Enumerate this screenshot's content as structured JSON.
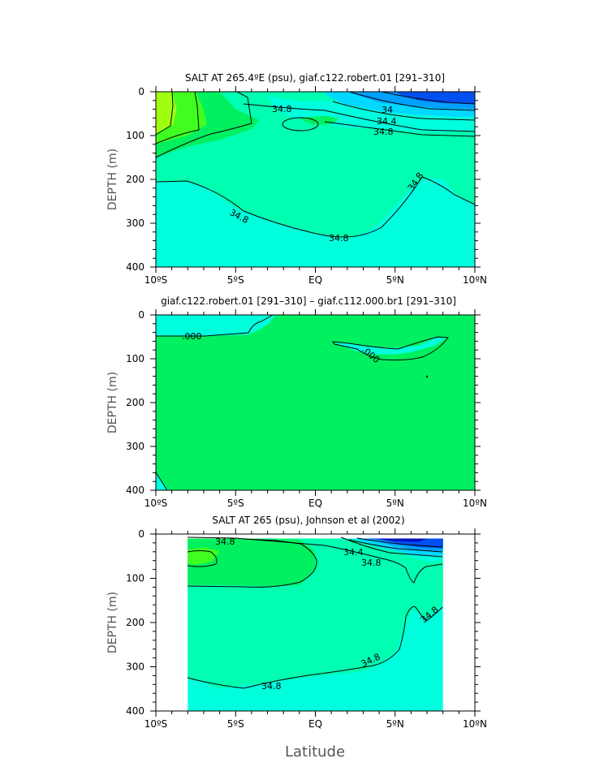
{
  "figure": {
    "xlabel": "Latitude"
  },
  "colors": {
    "c_lt34_0": "#0050f0",
    "c_34_0": "#00a0ff",
    "c_34_4": "#00d8ff",
    "c_34_8": "#00ffdd",
    "c_35_0": "#00ffb0",
    "c_35_2": "#00f060",
    "c_35_4": "#40ff20",
    "c_35_6": "#a0ff10",
    "c_diff_pos": "#00f060",
    "c_diff_neg": "#00ffdd",
    "c_deep_blue": "#0010c0"
  },
  "chart_data": [
    {
      "type": "contour",
      "title": "SALT AT 265.4ºE (psu), giaf.c122.robert.01 [291–310]",
      "ylabel": "DEPTH (m)",
      "x_ticks": [
        "10ºS",
        "5ºS",
        "EQ",
        "5ºN",
        "10ºN"
      ],
      "y_ticks": [
        "0",
        "100",
        "200",
        "300",
        "400"
      ],
      "xlim": [
        -10,
        10
      ],
      "ylim": [
        400,
        0
      ],
      "contour_labels": [
        "34.8",
        "34",
        "34.4",
        "34.8",
        "34.8",
        "34.8",
        "34.8"
      ],
      "regions": [
        {
          "color": "c_34_8",
          "points": [
            [
              -10,
              0
            ],
            [
              10,
              0
            ],
            [
              10,
              400
            ],
            [
              -10,
              400
            ]
          ]
        },
        {
          "color": "c_35_0",
          "points": [
            [
              -10,
              0
            ],
            [
              10,
              0
            ],
            [
              10,
              255
            ],
            [
              9,
              240
            ],
            [
              8,
              200
            ],
            [
              7,
              195
            ],
            [
              6,
              220
            ],
            [
              5,
              260
            ],
            [
              4,
              300
            ],
            [
              3,
              325
            ],
            [
              2,
              335
            ],
            [
              1,
              332
            ],
            [
              0,
              322
            ],
            [
              -1,
              312
            ],
            [
              -3,
              292
            ],
            [
              -5,
              265
            ],
            [
              -6,
              240
            ],
            [
              -7,
              215
            ],
            [
              -8,
              205
            ],
            [
              -10,
              205
            ]
          ]
        },
        {
          "color": "c_34_8",
          "points": [
            [
              -3.0,
              10
            ],
            [
              -1,
              22
            ],
            [
              1,
              20
            ],
            [
              3,
              20
            ],
            [
              5,
              24
            ],
            [
              7,
              28
            ],
            [
              10,
              32
            ],
            [
              10,
              90
            ],
            [
              8,
              92
            ],
            [
              6,
              90
            ],
            [
              4,
              85
            ],
            [
              2,
              82
            ],
            [
              0,
              72
            ],
            [
              -1.5,
              58
            ],
            [
              -2.5,
              40
            ]
          ]
        },
        {
          "color": "c_34_4",
          "points": [
            [
              0.5,
              0
            ],
            [
              10,
              0
            ],
            [
              10,
              58
            ],
            [
              8,
              56
            ],
            [
              6,
              52
            ],
            [
              4,
              44
            ],
            [
              2,
              30
            ],
            [
              1,
              15
            ]
          ]
        },
        {
          "color": "c_34_0",
          "points": [
            [
              2,
              0
            ],
            [
              10,
              0
            ],
            [
              10,
              40
            ],
            [
              8,
              38
            ],
            [
              6,
              33
            ],
            [
              4,
              24
            ],
            [
              3,
              12
            ]
          ]
        },
        {
          "color": "c_lt34_0",
          "points": [
            [
              5,
              0
            ],
            [
              10,
              0
            ],
            [
              10,
              28
            ],
            [
              8,
              26
            ],
            [
              6.5,
              20
            ],
            [
              5.5,
              10
            ]
          ]
        },
        {
          "color": "c_35_2",
          "points": [
            [
              -10,
              0
            ],
            [
              -6,
              0
            ],
            [
              -5,
              40
            ],
            [
              -3.5,
              65
            ],
            [
              -4,
              85
            ],
            [
              -6,
              110
            ],
            [
              -8,
              125
            ],
            [
              -10,
              150
            ]
          ]
        },
        {
          "color": "c_35_2",
          "points": [
            [
              1.0,
              75
            ],
            [
              1.5,
              62
            ],
            [
              0.7,
              55
            ],
            [
              -0.5,
              58
            ],
            [
              -1.0,
              62
            ],
            [
              -0.2,
              75
            ]
          ]
        },
        {
          "color": "c_35_4",
          "points": [
            [
              -10,
              0
            ],
            [
              -7.5,
              0
            ],
            [
              -7.0,
              40
            ],
            [
              -6.8,
              75
            ],
            [
              -8,
              100
            ],
            [
              -10,
              120
            ]
          ]
        },
        {
          "color": "c_35_6",
          "points": [
            [
              -10,
              0
            ],
            [
              -9.0,
              0
            ],
            [
              -8.7,
              40
            ],
            [
              -8.9,
              75
            ],
            [
              -10,
              95
            ]
          ]
        }
      ]
    },
    {
      "type": "contour",
      "title": "giaf.c122.robert.01 [291–310] – giaf.c112.000.br1 [291–310]",
      "ylabel": "DEPTH (m)",
      "x_ticks": [
        "10ºS",
        "5ºS",
        "EQ",
        "5ºN",
        "10ºN"
      ],
      "y_ticks": [
        "0",
        "100",
        "200",
        "300",
        "400"
      ],
      "xlim": [
        -10,
        10
      ],
      "ylim": [
        400,
        0
      ],
      "contour_labels": [
        ".000",
        ".000"
      ],
      "regions": [
        {
          "color": "c_diff_pos",
          "points": [
            [
              -10,
              0
            ],
            [
              10,
              0
            ],
            [
              10,
              400
            ],
            [
              -10,
              400
            ]
          ]
        },
        {
          "color": "c_diff_neg",
          "points": [
            [
              -10,
              0
            ],
            [
              -2.5,
              0
            ],
            [
              -2.9,
              20
            ],
            [
              -3.6,
              35
            ],
            [
              -4.2,
              45
            ],
            [
              -6.5,
              48
            ],
            [
              -10,
              48
            ]
          ]
        },
        {
          "color": "c_diff_neg",
          "points": [
            [
              1.2,
              62
            ],
            [
              2.5,
              66
            ],
            [
              3.5,
              72
            ],
            [
              5,
              75
            ],
            [
              6.5,
              70
            ],
            [
              7.5,
              52
            ],
            [
              8.2,
              53
            ],
            [
              7.5,
              70
            ],
            [
              6,
              85
            ],
            [
              5,
              90
            ],
            [
              3.5,
              90
            ],
            [
              2.5,
              82
            ],
            [
              1.5,
              68
            ]
          ]
        },
        {
          "color": "c_diff_neg",
          "points": [
            [
              -10,
              360
            ],
            [
              -9.2,
              400
            ],
            [
              -10,
              400
            ]
          ]
        }
      ]
    },
    {
      "type": "contour",
      "title": "SALT AT 265 (psu), Johnson et al (2002)",
      "ylabel": "DEPTH (m)",
      "x_ticks": [
        "10ºS",
        "5ºS",
        "EQ",
        "5ºN",
        "10ºN"
      ],
      "y_ticks": [
        "0",
        "100",
        "200",
        "300",
        "400"
      ],
      "xlim": [
        -10,
        10
      ],
      "ylim": [
        400,
        0
      ],
      "data_xrange": [
        -8,
        8
      ],
      "data_yrange": [
        10,
        400
      ],
      "contour_labels": [
        "34.8",
        "34.4",
        "34.8",
        "34.8",
        "34.8",
        "34.8"
      ],
      "regions": [
        {
          "color": "c_34_8",
          "points": [
            [
              -8,
              10
            ],
            [
              8,
              10
            ],
            [
              8,
              400
            ],
            [
              -8,
              400
            ]
          ]
        },
        {
          "color": "c_35_0",
          "points": [
            [
              -8,
              10
            ],
            [
              1,
              10
            ],
            [
              2,
              12
            ],
            [
              3,
              18
            ],
            [
              4,
              28
            ],
            [
              5,
              35
            ],
            [
              6,
              52
            ],
            [
              7,
              62
            ],
            [
              8,
              60
            ],
            [
              8,
              160
            ],
            [
              7,
              190
            ],
            [
              6,
              170
            ],
            [
              5,
              270
            ],
            [
              4,
              295
            ],
            [
              3,
              310
            ],
            [
              2,
              315
            ],
            [
              1,
              318
            ],
            [
              0,
              322
            ],
            [
              -2,
              330
            ],
            [
              -4,
              340
            ],
            [
              -6,
              350
            ],
            [
              -7,
              335
            ],
            [
              -8,
              325
            ]
          ]
        },
        {
          "color": "c_35_2",
          "points": [
            [
              -8,
              10
            ],
            [
              -4,
              10
            ],
            [
              -1,
              12
            ],
            [
              0,
              40
            ],
            [
              0,
              80
            ],
            [
              -1,
              115
            ],
            [
              -3,
              118
            ],
            [
              -6,
              115
            ],
            [
              -8,
              115
            ]
          ]
        },
        {
          "color": "c_35_4",
          "points": [
            [
              -8,
              35
            ],
            [
              -7,
              30
            ],
            [
              -6,
              38
            ],
            [
              -6.5,
              62
            ],
            [
              -7.5,
              70
            ],
            [
              -8,
              65
            ]
          ]
        },
        {
          "color": "c_34_4",
          "points": [
            [
              2.5,
              10
            ],
            [
              8,
              10
            ],
            [
              8,
              48
            ],
            [
              6.5,
              48
            ],
            [
              5,
              38
            ],
            [
              4,
              30
            ],
            [
              3,
              18
            ]
          ]
        },
        {
          "color": "c_34_0",
          "points": [
            [
              3,
              10
            ],
            [
              8,
              10
            ],
            [
              8,
              38
            ],
            [
              6.5,
              38
            ],
            [
              5,
              28
            ],
            [
              4,
              18
            ]
          ]
        },
        {
          "color": "c_lt34_0",
          "points": [
            [
              3.3,
              10
            ],
            [
              8,
              10
            ],
            [
              8,
              32
            ],
            [
              6.5,
              30
            ],
            [
              5,
              20
            ],
            [
              4,
              12
            ]
          ]
        },
        {
          "color": "c_deep_blue",
          "points": [
            [
              3.3,
              10
            ],
            [
              7,
              10
            ],
            [
              6.5,
              18
            ],
            [
              5,
              16
            ],
            [
              4,
              12
            ]
          ]
        }
      ]
    }
  ]
}
